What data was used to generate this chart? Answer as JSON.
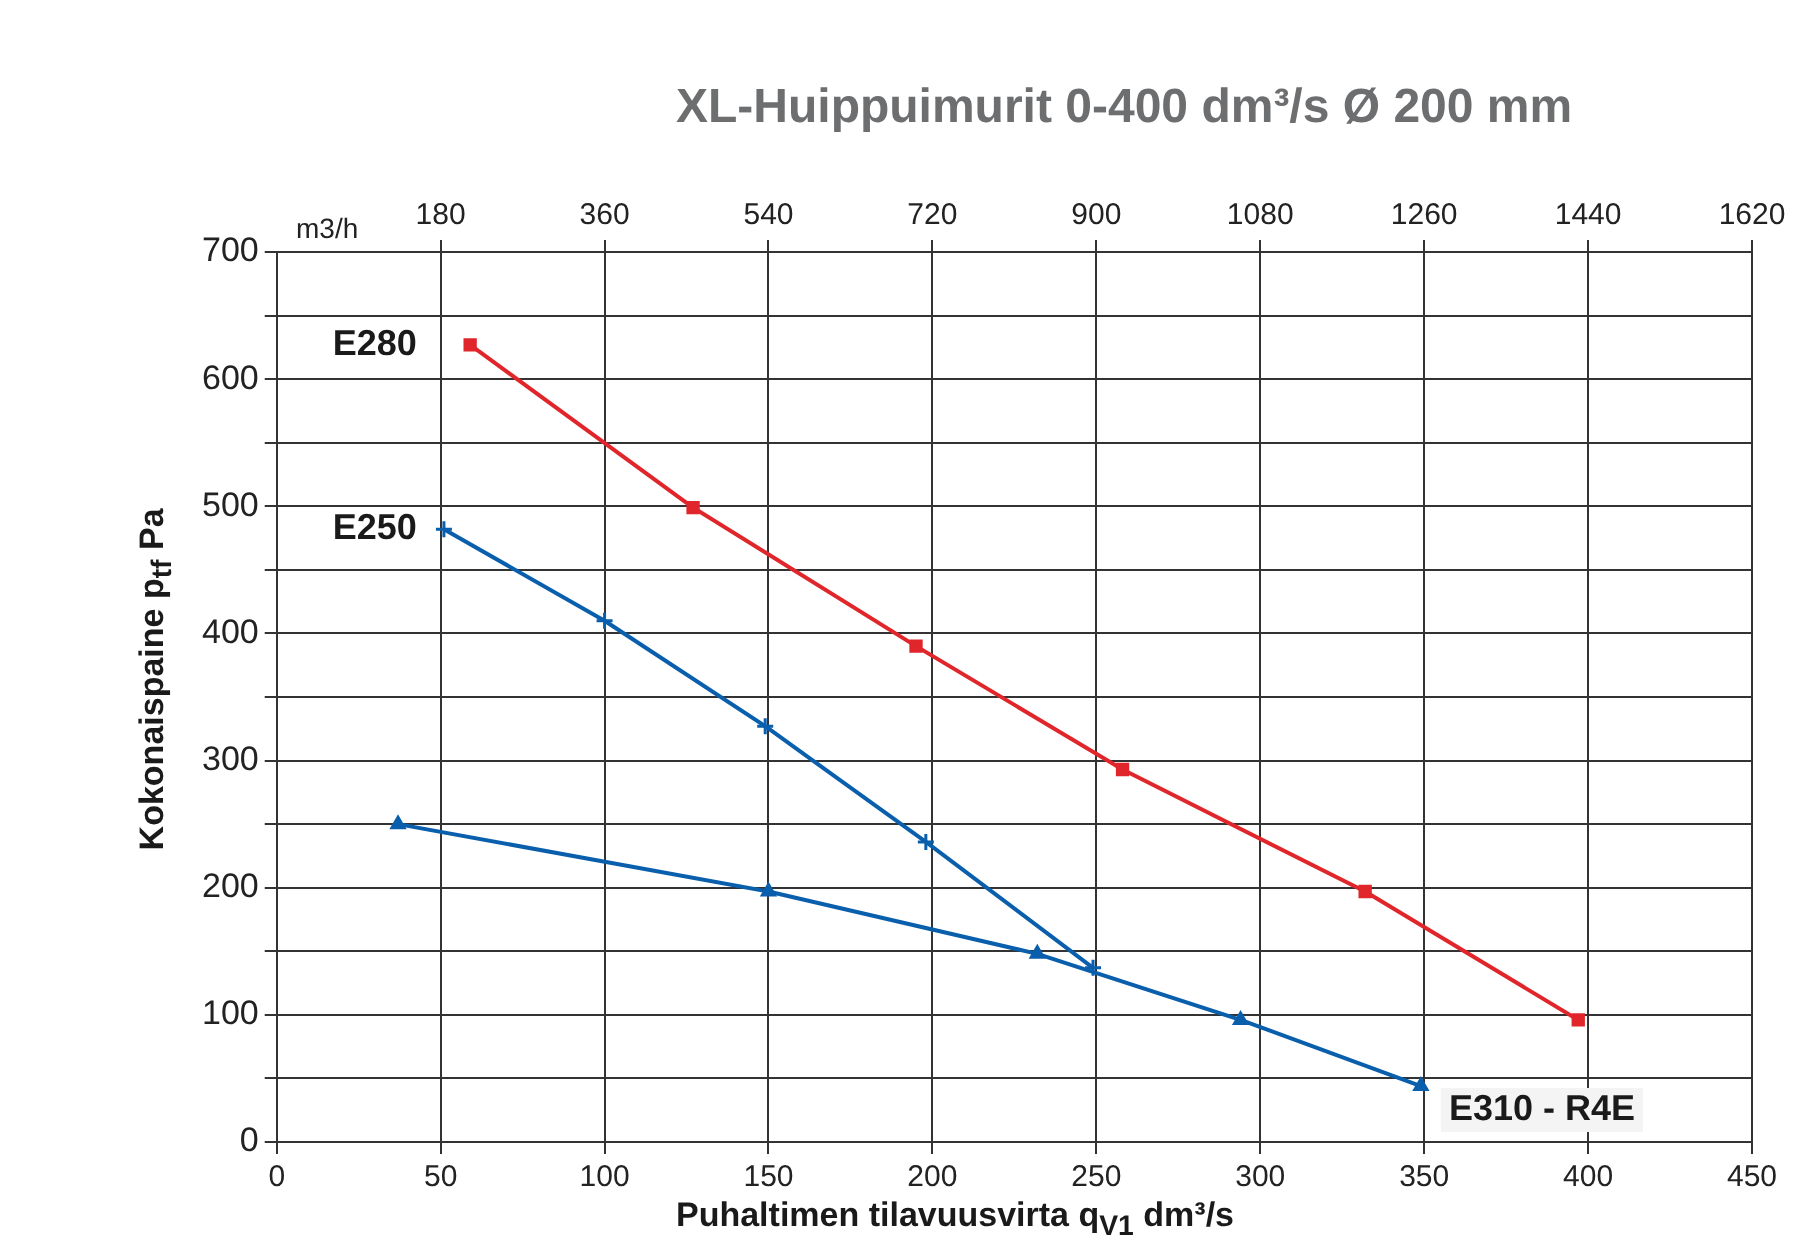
{
  "chart_data": {
    "type": "line",
    "title": "XL-Huippuimurit 0-400 dm³/s Ø 200 mm",
    "xlabel": "Puhaltimen tilavuusvirta q$_{V1}$ dm³/s",
    "ylabel": "Kokonaispaine p$_{tf}$ Pa",
    "x2label": "m3/h",
    "xlim": [
      0,
      450
    ],
    "xticks": [
      0,
      50,
      100,
      150,
      200,
      250,
      300,
      350,
      400,
      450
    ],
    "x2lim": [
      0,
      1620
    ],
    "x2ticks": [
      180,
      360,
      540,
      720,
      900,
      1080,
      1260,
      1440,
      1620
    ],
    "ylim": [
      0,
      700
    ],
    "yticks": [
      0,
      {
        "value": 50,
        "label": null
      },
      100,
      {
        "value": 150,
        "label": null
      },
      200,
      {
        "value": 250,
        "label": null
      },
      300,
      {
        "value": 350,
        "label": null
      },
      400,
      {
        "value": 450,
        "label": null
      },
      500,
      {
        "value": 550,
        "label": null
      },
      600,
      {
        "value": 650,
        "label": null
      },
      700
    ],
    "grid": true,
    "legend": false,
    "line_style": "solid",
    "series": [
      {
        "name": "E280",
        "color": "#e0262b",
        "marker": "square",
        "x": [
          59,
          127,
          195,
          258,
          332,
          397
        ],
        "values": [
          627,
          499,
          390,
          293,
          197,
          96
        ]
      },
      {
        "name": "E250",
        "color": "#0a5fad",
        "marker": "cross",
        "x": [
          51,
          100,
          149,
          198,
          249
        ],
        "values": [
          482,
          410,
          327,
          236,
          137
        ]
      },
      {
        "name": "E310 - R4E",
        "color": "#0a5fad",
        "marker": "triangle",
        "x": [
          37,
          150,
          232,
          294,
          349
        ],
        "values": [
          250,
          197,
          148,
          96,
          44
        ]
      }
    ]
  }
}
